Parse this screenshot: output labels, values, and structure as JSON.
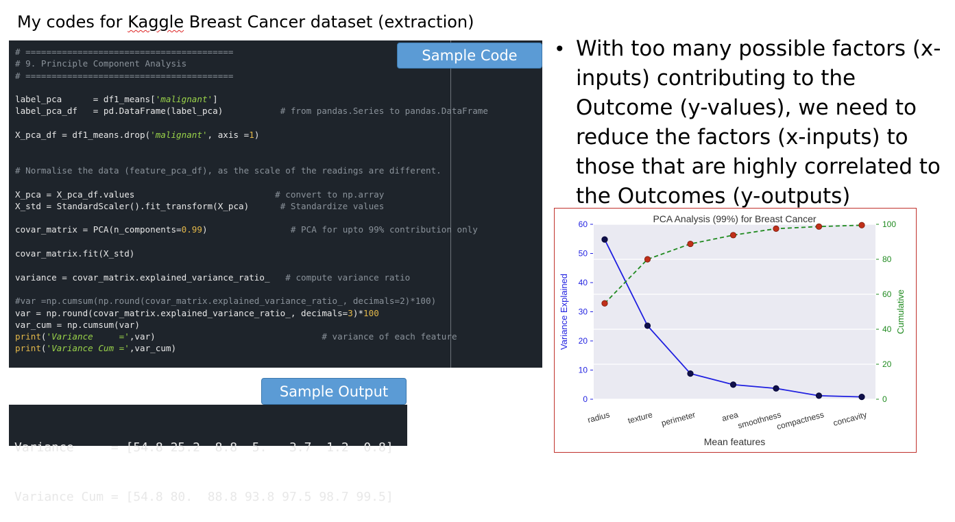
{
  "slide": {
    "title_pre": "My codes for ",
    "title_squiggle": "Kaggle",
    "title_post": " Breast Cancer dataset (extraction)"
  },
  "callouts": {
    "code": "Sample Code",
    "output": "Sample Output"
  },
  "code_lines": [
    [
      [
        "c",
        "# ========================================"
      ]
    ],
    [
      [
        "c",
        "# 9. Principle Component Analysis"
      ]
    ],
    [
      [
        "c",
        "# ========================================"
      ]
    ],
    [
      [
        "t",
        ""
      ]
    ],
    [
      [
        "t",
        "label_pca      = df1_means["
      ],
      [
        "s",
        "'malignant'"
      ],
      [
        "t",
        "]"
      ]
    ],
    [
      [
        "t",
        "label_pca_df   = pd.DataFrame(label_pca)           "
      ],
      [
        "c",
        "# from pandas.Series to pandas.DataFrame"
      ]
    ],
    [
      [
        "t",
        ""
      ]
    ],
    [
      [
        "t",
        "X_pca_df = df1_means.drop("
      ],
      [
        "s",
        "'malignant'"
      ],
      [
        "t",
        ", axis ="
      ],
      [
        "n",
        "1"
      ],
      [
        "t",
        ")"
      ]
    ],
    [
      [
        "t",
        ""
      ]
    ],
    [
      [
        "t",
        ""
      ]
    ],
    [
      [
        "c",
        "# Normalise the data (feature_pca_df), as the scale of the readings are different."
      ]
    ],
    [
      [
        "t",
        ""
      ]
    ],
    [
      [
        "t",
        "X_pca = X_pca_df.values                           "
      ],
      [
        "c",
        "# convert to np.array"
      ]
    ],
    [
      [
        "t",
        "X_std = StandardScaler().fit_transform(X_pca)      "
      ],
      [
        "c",
        "# Standardize values"
      ]
    ],
    [
      [
        "t",
        ""
      ]
    ],
    [
      [
        "t",
        "covar_matrix = PCA(n_components="
      ],
      [
        "n",
        "0.99"
      ],
      [
        "t",
        ")                "
      ],
      [
        "c",
        "# PCA for upto 99% contribution only"
      ]
    ],
    [
      [
        "t",
        ""
      ]
    ],
    [
      [
        "t",
        "covar_matrix.fit(X_std)"
      ]
    ],
    [
      [
        "t",
        ""
      ]
    ],
    [
      [
        "t",
        "variance = covar_matrix.explained_variance_ratio_   "
      ],
      [
        "c",
        "# compute variance ratio"
      ]
    ],
    [
      [
        "t",
        ""
      ]
    ],
    [
      [
        "c",
        "#var =np.cumsum(np.round(covar_matrix.explained_variance_ratio_, decimals=2)*100)"
      ]
    ],
    [
      [
        "t",
        "var = np.round(covar_matrix.explained_variance_ratio_, decimals="
      ],
      [
        "n",
        "3"
      ],
      [
        "t",
        ")*"
      ],
      [
        "n",
        "100"
      ]
    ],
    [
      [
        "t",
        "var_cum = np.cumsum(var)"
      ]
    ],
    [
      [
        "n",
        "print"
      ],
      [
        "t",
        "("
      ],
      [
        "s",
        "'Variance     ='"
      ],
      [
        "t",
        ",var)                                "
      ],
      [
        "c",
        "# variance of each feature"
      ]
    ],
    [
      [
        "n",
        "print"
      ],
      [
        "t",
        "("
      ],
      [
        "s",
        "'Variance Cum ='"
      ],
      [
        "t",
        ",var_cum)"
      ]
    ]
  ],
  "output": {
    "line1": "Variance     = [54.8 25.2  8.8  5.   3.7  1.2  0.8]",
    "line2": "Variance Cum = [54.8 80.  88.8 93.8 97.5 98.7 99.5]"
  },
  "bullet": {
    "text": "With too many possible factors (x-inputs) contributing to the Outcome (y-values), we need to reduce the factors (x-inputs) to those that are highly correlated to the Outcomes (y-outputs)"
  },
  "colors": {
    "variance_line": "#1f1fe0",
    "cumulative_line": "#1f8a1f",
    "variance_marker": "#10104a",
    "cumulative_marker": "#c0301a",
    "plot_bg": "#eaeaf2"
  },
  "chart_data": {
    "type": "line",
    "title": "PCA Analysis (99%) for Breast Cancer",
    "xlabel": "Mean features",
    "ylabel_left": "Variance Explained",
    "ylabel_right": "Cumulative",
    "categories": [
      "radius",
      "texture",
      "perimeter",
      "area",
      "smoothness",
      "compactness",
      "concavity"
    ],
    "ylim_left": [
      0,
      60
    ],
    "yticks_left": [
      0,
      10,
      20,
      30,
      40,
      50,
      60
    ],
    "ylim_right": [
      0,
      100
    ],
    "yticks_right": [
      0,
      20,
      40,
      60,
      80,
      100
    ],
    "grid": true,
    "series": [
      {
        "name": "Variance Explained",
        "axis": "left",
        "style": "solid",
        "values": [
          54.8,
          25.2,
          8.8,
          5.0,
          3.7,
          1.2,
          0.8
        ]
      },
      {
        "name": "Cumulative",
        "axis": "right",
        "style": "dashed",
        "values": [
          54.8,
          80.0,
          88.8,
          93.8,
          97.5,
          98.7,
          99.5
        ]
      }
    ]
  }
}
